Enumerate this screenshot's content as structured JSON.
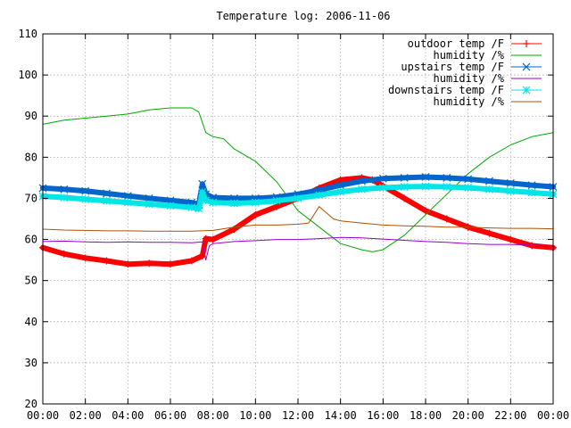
{
  "chart_data": {
    "type": "line",
    "title": "Temperature log: 2006-11-06",
    "xlabel": "",
    "ylabel": "",
    "ylim": [
      20,
      110
    ],
    "xlim_hours": [
      0,
      24
    ],
    "grid": true,
    "legend_position": "top-right",
    "x_ticks": [
      "00:00",
      "02:00",
      "04:00",
      "06:00",
      "08:00",
      "10:00",
      "12:00",
      "14:00",
      "16:00",
      "18:00",
      "20:00",
      "22:00",
      "00:00"
    ],
    "y_ticks": [
      "20",
      "30",
      "40",
      "50",
      "60",
      "70",
      "80",
      "90",
      "100",
      "110"
    ],
    "series": [
      {
        "name": "outdoor temp /F",
        "color": "#ff0000",
        "marker": "plus",
        "x": [
          "00:00",
          "01:00",
          "02:00",
          "03:00",
          "04:00",
          "05:00",
          "06:00",
          "07:00",
          "07:30",
          "07:40",
          "08:00",
          "09:00",
          "10:00",
          "11:00",
          "12:00",
          "13:00",
          "14:00",
          "15:00",
          "15:30",
          "16:00",
          "17:00",
          "18:00",
          "19:00",
          "20:00",
          "21:00",
          "22:00",
          "23:00",
          "24:00"
        ],
        "y": [
          58,
          56.5,
          55.5,
          54.8,
          54,
          54.2,
          54,
          54.8,
          56,
          60.2,
          60,
          62.5,
          66,
          68,
          70,
          72.5,
          74.5,
          75,
          74.5,
          73,
          70,
          67,
          65,
          63,
          61.5,
          60,
          58.5,
          58
        ]
      },
      {
        "name": "humidity /%",
        "color": "#00aa00",
        "marker": "none",
        "x": [
          "00:00",
          "01:00",
          "02:00",
          "03:00",
          "04:00",
          "05:00",
          "06:00",
          "07:00",
          "07:20",
          "07:40",
          "08:00",
          "08:30",
          "09:00",
          "10:00",
          "11:00",
          "12:00",
          "13:00",
          "14:00",
          "15:00",
          "15:30",
          "16:00",
          "17:00",
          "18:00",
          "19:00",
          "20:00",
          "21:00",
          "22:00",
          "23:00",
          "24:00"
        ],
        "y": [
          88,
          89,
          89.5,
          90,
          90.5,
          91.5,
          92,
          92,
          91,
          86,
          85,
          84.5,
          82,
          79,
          74,
          67,
          63,
          59,
          57.5,
          57,
          57.5,
          61,
          66,
          71,
          76,
          80,
          83,
          85,
          86
        ]
      },
      {
        "name": "upstairs temp /F",
        "color": "#0066cc",
        "marker": "x",
        "x": [
          "00:00",
          "01:00",
          "02:00",
          "03:00",
          "04:00",
          "05:00",
          "06:00",
          "07:00",
          "07:20",
          "07:30",
          "07:40",
          "08:00",
          "09:00",
          "10:00",
          "11:00",
          "12:00",
          "13:00",
          "14:00",
          "15:00",
          "16:00",
          "17:00",
          "18:00",
          "19:00",
          "20:00",
          "21:00",
          "22:00",
          "23:00",
          "24:00"
        ],
        "y": [
          72.5,
          72.2,
          71.8,
          71.2,
          70.6,
          70,
          69.5,
          69,
          68.5,
          73.5,
          71,
          70.2,
          70,
          70,
          70.3,
          71,
          72,
          73.2,
          74.2,
          74.8,
          75,
          75.2,
          75,
          74.7,
          74.2,
          73.7,
          73.2,
          72.8
        ]
      },
      {
        "name": "humidity /%",
        "color": "#9900cc",
        "marker": "none",
        "x": [
          "00:00",
          "01:00",
          "02:00",
          "03:00",
          "04:00",
          "05:00",
          "06:00",
          "07:00",
          "07:30",
          "07:40",
          "07:50",
          "08:00",
          "09:00",
          "10:00",
          "11:00",
          "12:00",
          "13:00",
          "14:00",
          "15:00",
          "16:00",
          "17:00",
          "18:00",
          "19:00",
          "20:00",
          "21:00",
          "22:00",
          "23:00",
          "24:00"
        ],
        "y": [
          59.5,
          59.6,
          59.4,
          59.3,
          59.4,
          59.3,
          59.3,
          59.2,
          59.4,
          55,
          58.5,
          59,
          59.5,
          59.7,
          60,
          60,
          60.2,
          60.5,
          60.4,
          60.1,
          59.8,
          59.5,
          59.3,
          59,
          58.8,
          58.8,
          58.6,
          58.5
        ]
      },
      {
        "name": "downstairs temp /F",
        "color": "#00e5e5",
        "marker": "asterisk",
        "x": [
          "00:00",
          "01:00",
          "02:00",
          "03:00",
          "04:00",
          "05:00",
          "06:00",
          "07:00",
          "07:20",
          "07:30",
          "07:40",
          "08:00",
          "09:00",
          "10:00",
          "11:00",
          "12:00",
          "13:00",
          "14:00",
          "15:00",
          "16:00",
          "17:00",
          "18:00",
          "19:00",
          "20:00",
          "21:00",
          "22:00",
          "23:00",
          "24:00"
        ],
        "y": [
          70.5,
          70.2,
          69.8,
          69.4,
          69,
          68.6,
          68.2,
          67.8,
          67.5,
          71.5,
          69.5,
          69,
          68.8,
          69,
          69.4,
          70,
          70.8,
          71.6,
          72.2,
          72.6,
          72.8,
          72.9,
          72.8,
          72.6,
          72.2,
          71.8,
          71.4,
          71
        ]
      },
      {
        "name": "humidity /%",
        "color": "#b05000",
        "marker": "none",
        "x": [
          "00:00",
          "01:00",
          "02:00",
          "03:00",
          "04:00",
          "05:00",
          "06:00",
          "07:00",
          "08:00",
          "09:00",
          "10:00",
          "11:00",
          "12:00",
          "12:30",
          "13:00",
          "13:20",
          "13:40",
          "14:00",
          "15:00",
          "16:00",
          "17:00",
          "18:00",
          "19:00",
          "20:00",
          "21:00",
          "22:00",
          "23:00",
          "24:00"
        ],
        "y": [
          62.5,
          62.3,
          62.2,
          62.1,
          62.1,
          62,
          62,
          62,
          62.2,
          63,
          63.5,
          63.5,
          63.7,
          64,
          68,
          66.5,
          65,
          64.5,
          64,
          63.5,
          63.3,
          63.2,
          63,
          63,
          62.8,
          62.7,
          62.7,
          62.6
        ]
      }
    ]
  }
}
